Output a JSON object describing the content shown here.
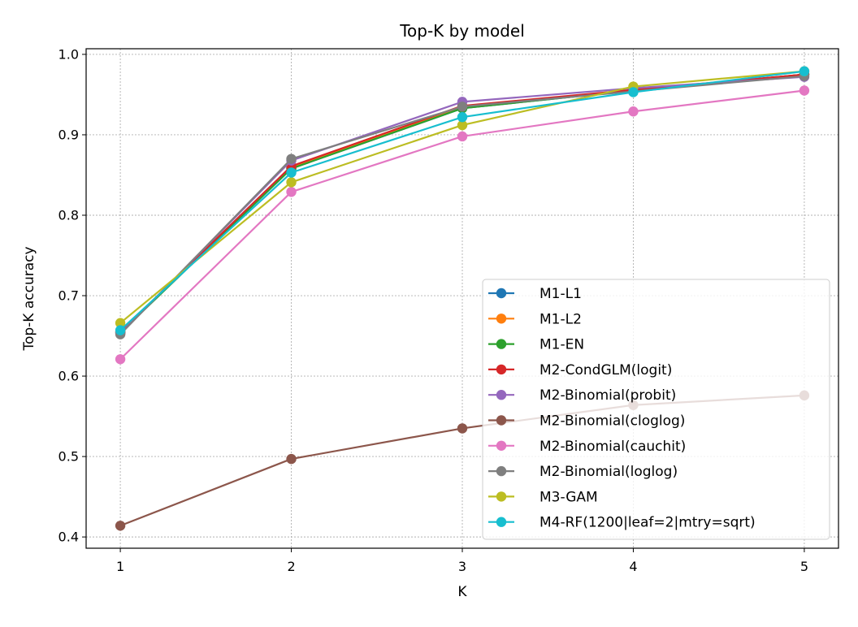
{
  "chart_data": {
    "type": "line",
    "title": "Top-K by model",
    "xlabel": "K",
    "ylabel": "Top-K accuracy",
    "x": [
      1,
      2,
      3,
      4,
      5
    ],
    "xticks": [
      "1",
      "2",
      "3",
      "4",
      "5"
    ],
    "yticks": [
      "0.4",
      "0.5",
      "0.6",
      "0.7",
      "0.8",
      "0.9",
      "1.0"
    ],
    "xlim": [
      0.8,
      5.2
    ],
    "ylim": [
      0.386,
      1.007
    ],
    "grid": true,
    "legend_position": "lower-right",
    "series": [
      {
        "name": "M1-L1",
        "color": "#1f77b4",
        "values": [
          0.654,
          0.858,
          0.933,
          0.955,
          0.975
        ]
      },
      {
        "name": "M1-L2",
        "color": "#ff7f0e",
        "values": [
          0.655,
          0.859,
          0.934,
          0.955,
          0.975
        ]
      },
      {
        "name": "M1-EN",
        "color": "#2ca02c",
        "values": [
          0.654,
          0.858,
          0.933,
          0.955,
          0.975
        ]
      },
      {
        "name": "M2-CondGLM(logit)",
        "color": "#d62728",
        "values": [
          0.655,
          0.861,
          0.936,
          0.956,
          0.975
        ]
      },
      {
        "name": "M2-Binomial(probit)",
        "color": "#9467bd",
        "values": [
          0.653,
          0.868,
          0.941,
          0.958,
          0.972
        ]
      },
      {
        "name": "M2-Binomial(cloglog)",
        "color": "#8c564b",
        "values": [
          0.414,
          0.497,
          0.535,
          0.564,
          0.576
        ]
      },
      {
        "name": "M2-Binomial(cauchit)",
        "color": "#e377c2",
        "values": [
          0.621,
          0.829,
          0.898,
          0.929,
          0.955
        ]
      },
      {
        "name": "M2-Binomial(loglog)",
        "color": "#7f7f7f",
        "values": [
          0.652,
          0.87,
          0.935,
          0.954,
          0.973
        ]
      },
      {
        "name": "M3-GAM",
        "color": "#bcbd22",
        "values": [
          0.666,
          0.841,
          0.912,
          0.96,
          0.979
        ]
      },
      {
        "name": "M4-RF(1200|leaf=2|mtry=sqrt)",
        "color": "#17becf",
        "values": [
          0.657,
          0.853,
          0.922,
          0.953,
          0.979
        ]
      }
    ]
  }
}
